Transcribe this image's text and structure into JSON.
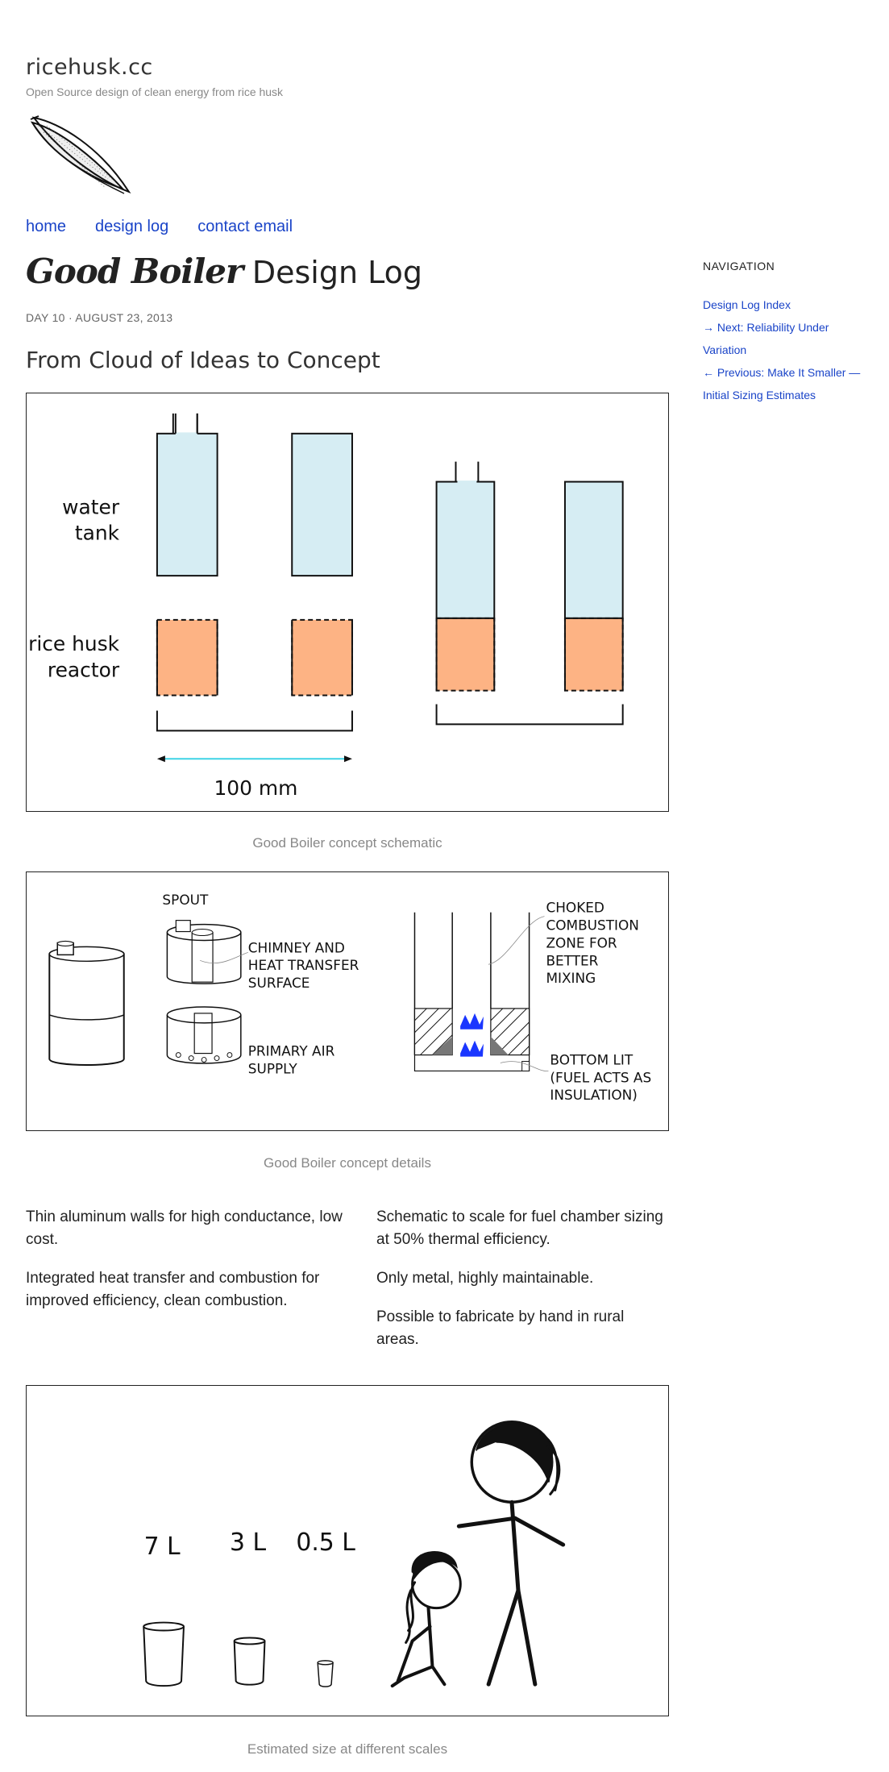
{
  "site": {
    "title": "ricehusk.cc",
    "description": "Open Source design of clean energy from rice husk"
  },
  "nav": [
    "home",
    "design log",
    "contact email"
  ],
  "post": {
    "title_brand": "Good Boiler",
    "title_rest": "Design Log",
    "meta": "DAY 10 · AUGUST 23, 2013",
    "heading": "From Cloud of Ideas to Concept"
  },
  "figures": {
    "schematic": {
      "label_water": [
        "water",
        "tank"
      ],
      "label_reactor": [
        "rice husk",
        "reactor"
      ],
      "scale_label": "100 mm",
      "caption": "Good Boiler concept schematic"
    },
    "details": {
      "spout": "SPOUT",
      "chimney": [
        "CHIMNEY AND",
        "HEAT TRANSFER",
        "SURFACE"
      ],
      "primary_air": [
        "PRIMARY AIR",
        "SUPPLY"
      ],
      "choked": [
        "CHOKED",
        "COMBUSTION",
        "ZONE FOR",
        "BETTER",
        "MIXING"
      ],
      "bottom_lit": [
        "BOTTOM LIT",
        "(FUEL ACTS AS",
        "INSULATION)"
      ],
      "caption": "Good Boiler concept details"
    },
    "scales": {
      "sizes": [
        "7 L",
        "3 L",
        "0.5 L"
      ],
      "caption": "Estimated size at different scales"
    }
  },
  "columns": {
    "left": [
      "Thin aluminum walls for high conductance, low cost.",
      "Integrated heat transfer and combustion for improved efficiency, clean combustion."
    ],
    "right": [
      "Schematic to scale for fuel chamber sizing at 50% thermal efficiency.",
      "Only metal, highly maintainable.",
      "Possible to fabricate by hand in rural areas."
    ]
  },
  "sidebar": {
    "heading": "NAVIGATION",
    "links": [
      "Design Log Index",
      "→ Next: Reliability Under Variation",
      "← Previous: Make It Smaller — Initial Sizing Estimates"
    ]
  },
  "colors": {
    "link": "#1a44c8",
    "water": "#d6edf3",
    "reactor": "#fdb384",
    "scale_arrow": "#3fd3e6",
    "flame": "#1a36ff"
  }
}
